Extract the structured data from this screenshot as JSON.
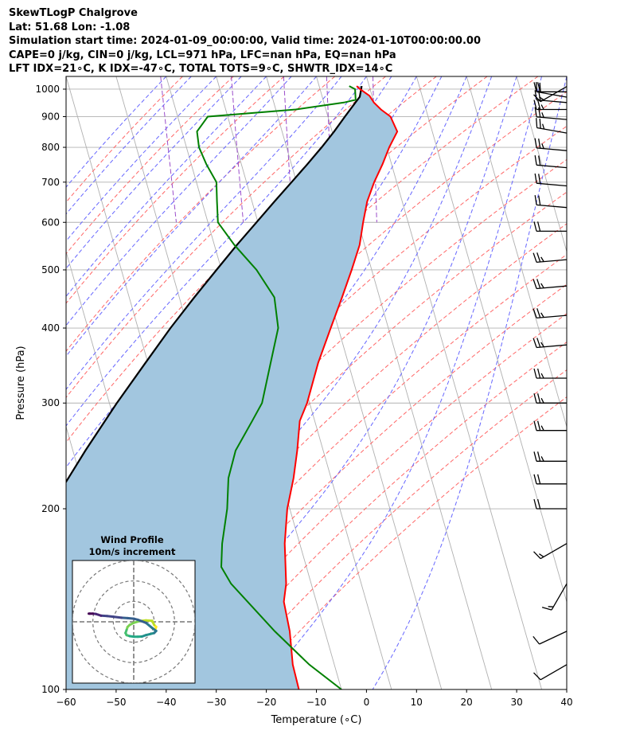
{
  "header": {
    "line1": "SkewTLogP Chalgrove",
    "line2": "Lat: 51.68   Lon: -1.08",
    "line3": "Simulation start time: 2024-01-09_00:00:00, Valid time: 2024-01-10T00:00:00.00",
    "line4": "CAPE=0 j/kg, CIN=0 j/kg, LCL=971 hPa, LFC=nan hPa, EQ=nan hPa",
    "line5": "LFT IDX=21∘C, K IDX=-47∘C, TOTAL TOTS=9∘C, SHWTR_IDX=14∘C"
  },
  "colors": {
    "temperature": "#ff0000",
    "dewpoint": "#008000",
    "parcel": "#000000",
    "cape_fill": "#a2c6df",
    "dry_adiabats": "#ff6666",
    "moist_adiabats": "#6666ff",
    "isotherms": "#b0b0b0",
    "mixing_ratio": "#9b4dca"
  },
  "chart_data": [
    {
      "type": "line",
      "subtype": "skew-T log-P",
      "xlabel": "Temperature (∘C)",
      "ylabel": "Pressure (hPa)",
      "xlim": [
        -60,
        40
      ],
      "ylim": [
        1050,
        100
      ],
      "y_scale": "log",
      "x_ticks": [
        -60,
        -50,
        -40,
        -30,
        -20,
        -10,
        0,
        10,
        20,
        30,
        40
      ],
      "y_ticks": [
        1000,
        900,
        800,
        700,
        600,
        500,
        400,
        300,
        200,
        100
      ],
      "grid": true,
      "shaded_area": "between parcel and temperature, 971-100 hPa",
      "series": [
        {
          "role": "temperature",
          "pressure": [
            1012,
            1000,
            975,
            950,
            925,
            900,
            850,
            800,
            750,
            700,
            650,
            600,
            550,
            500,
            450,
            400,
            350,
            300,
            280,
            250,
            225,
            200,
            175,
            150,
            140,
            125,
            110,
            100
          ],
          "values": [
            -2.5,
            -2.0,
            -0.5,
            0.0,
            1.0,
            2.5,
            3.0,
            0.5,
            -1.8,
            -4.5,
            -7.0,
            -9.0,
            -11.0,
            -14.0,
            -17.5,
            -21.5,
            -26.0,
            -30.5,
            -33.0,
            -35.2,
            -37.5,
            -40.5,
            -43.0,
            -45.0,
            -46.5,
            -47.0,
            -48.3,
            -48.5
          ]
        },
        {
          "role": "dewpoint",
          "pressure": [
            1012,
            1000,
            960,
            950,
            925,
            900,
            850,
            800,
            750,
            700,
            650,
            600,
            550,
            500,
            450,
            400,
            350,
            300,
            280,
            250,
            225,
            200,
            175,
            160,
            150,
            125,
            110,
            100
          ],
          "values": [
            -4.0,
            -3.0,
            -3.5,
            -6.0,
            -16.0,
            -34.0,
            -37.0,
            -37.5,
            -37.0,
            -36.0,
            -37.0,
            -38.0,
            -36.0,
            -33.0,
            -31.0,
            -32.0,
            -35.5,
            -39.5,
            -42.5,
            -47.5,
            -50.5,
            -52.5,
            -55.5,
            -57.0,
            -56.0,
            -50.0,
            -45.0,
            -40.0
          ]
        },
        {
          "role": "parcel",
          "pressure": [
            1012,
            971,
            950,
            900,
            850,
            800,
            750,
            700,
            650,
            600,
            550,
            500,
            450,
            400,
            350,
            300,
            250,
            200,
            150,
            125,
            100
          ],
          "values": [
            -1.5,
            -2.5,
            -3.7,
            -6.6,
            -9.6,
            -13.0,
            -16.8,
            -21.0,
            -25.5,
            -30.3,
            -35.5,
            -41.0,
            -47.0,
            -53.5,
            -60.5,
            -68.5,
            -77.5,
            -88.0,
            -101.0,
            -108.5,
            -117.5
          ]
        }
      ],
      "wind_barbs": {
        "pressure": [
          1010,
          990,
          970,
          950,
          925,
          890,
          845,
          790,
          740,
          690,
          635,
          580,
          520,
          470,
          420,
          375,
          330,
          300,
          270,
          240,
          220,
          200,
          175,
          150,
          125,
          110
        ],
        "speed_kt": [
          15,
          20,
          20,
          20,
          25,
          25,
          25,
          25,
          20,
          20,
          20,
          20,
          25,
          25,
          25,
          25,
          25,
          25,
          25,
          25,
          20,
          20,
          15,
          15,
          10,
          10
        ],
        "direction_deg": [
          240,
          270,
          280,
          275,
          270,
          275,
          280,
          275,
          275,
          275,
          275,
          270,
          265,
          265,
          265,
          265,
          270,
          270,
          270,
          270,
          270,
          270,
          240,
          210,
          245,
          240
        ]
      }
    },
    {
      "type": "line",
      "subtype": "hodograph",
      "title": "Wind Profile",
      "subtitle": "10m/s increment",
      "rings": [
        10,
        20,
        30
      ],
      "u": [
        10.5,
        11.0,
        10.0,
        9.0,
        6.0,
        3.0,
        0.0,
        -2.0,
        -3.0,
        -3.5,
        -4.0,
        -3.5,
        -2.0,
        0.0,
        2.0,
        4.0,
        6.0,
        8.0,
        10.0,
        11.0,
        9.0,
        6.0,
        2.0,
        0.0,
        -3.0,
        -6.0,
        -10.0,
        -13.0,
        -16.0,
        -17.5,
        -18.5,
        -20.0,
        -21.5,
        -22.0
      ],
      "v": [
        -4.0,
        -2.5,
        -1.5,
        0.5,
        0.7,
        0.4,
        -0.5,
        -1.5,
        -2.5,
        -4.0,
        -5.5,
        -6.5,
        -7.0,
        -7.3,
        -7.3,
        -7.2,
        -6.5,
        -6.0,
        -5.5,
        -4.5,
        -3.0,
        -0.5,
        1.0,
        1.5,
        1.8,
        2.0,
        2.5,
        2.8,
        3.0,
        3.5,
        3.8,
        4.0,
        4.0,
        4.0
      ]
    }
  ]
}
